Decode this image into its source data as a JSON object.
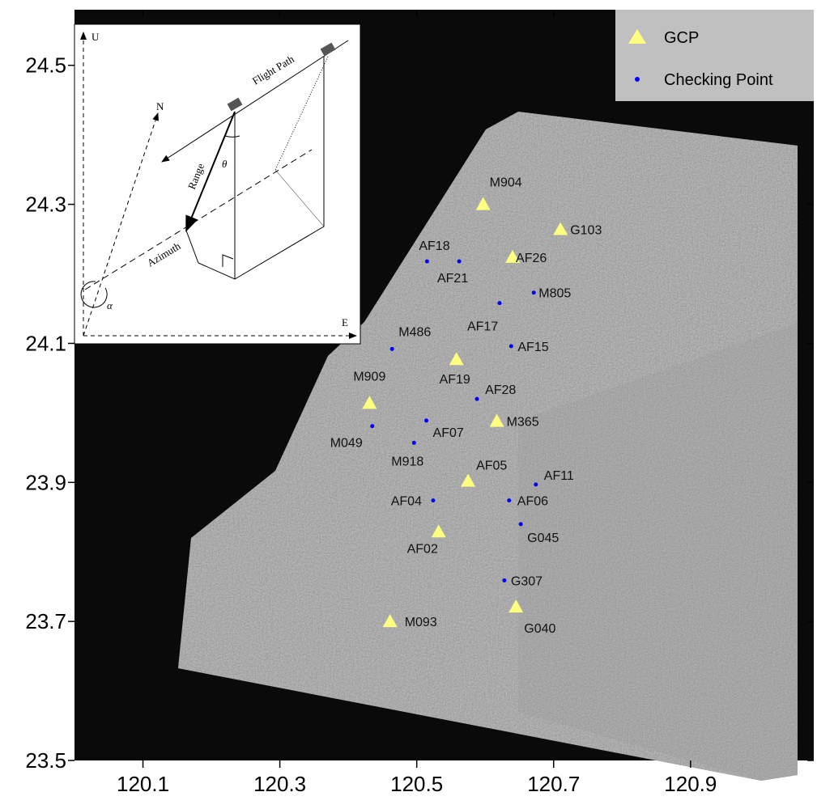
{
  "chart_data": {
    "type": "scatter",
    "xlim": [
      120.0,
      121.08
    ],
    "ylim": [
      23.5,
      24.58
    ],
    "xticks": [
      120.1,
      120.3,
      120.5,
      120.7,
      120.9
    ],
    "yticks": [
      23.5,
      23.7,
      23.9,
      24.1,
      24.3,
      24.5
    ],
    "legend": "upper right",
    "series": [
      {
        "name": "GCP",
        "color": "#ffff80",
        "marker": "triangle",
        "labels": [
          "M904",
          "G103",
          "AF26",
          "M909",
          "AF19",
          "M365",
          "AF05",
          "AF02",
          "G040",
          "M093"
        ],
        "x": [
          120.597,
          120.71,
          120.64,
          120.431,
          120.558,
          120.617,
          120.575,
          120.532,
          120.645,
          120.461
        ],
        "y": [
          24.3,
          24.264,
          24.224,
          24.014,
          24.077,
          23.988,
          23.902,
          23.829,
          23.721,
          23.7
        ]
      },
      {
        "name": "Checking Point",
        "color": "#0000ff",
        "marker": "dot",
        "labels": [
          "AF18",
          "AF21",
          "M805",
          "AF17",
          "M486",
          "AF15",
          "AF28",
          "AF07",
          "M049",
          "M918",
          "AF11",
          "AF04",
          "AF06",
          "G045",
          "G307"
        ],
        "x": [
          120.515,
          120.562,
          120.671,
          120.621,
          120.464,
          120.638,
          120.588,
          120.514,
          120.435,
          120.496,
          120.674,
          120.524,
          120.635,
          120.652,
          120.628
        ],
        "y": [
          24.218,
          24.218,
          24.173,
          24.158,
          24.092,
          24.096,
          24.02,
          23.989,
          23.981,
          23.957,
          23.897,
          23.874,
          23.874,
          23.84,
          23.759
        ]
      }
    ]
  },
  "inset": {
    "axis_up": "U",
    "north": "N",
    "axis_east": "E",
    "flight_path": "Flight Path",
    "range": "Range",
    "azimuth": "Azimuth",
    "look_angle": "θ",
    "heading_angle": "α"
  }
}
